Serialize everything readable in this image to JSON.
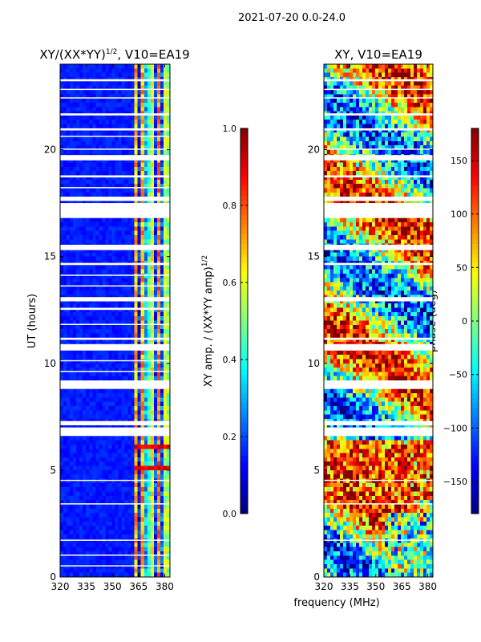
{
  "figure": {
    "suptitle": "2021-07-20 0.0-24.0",
    "xlabel": "frequency (MHz)"
  },
  "colors": {
    "jet": [
      "#00007f",
      "#0000ff",
      "#007fff",
      "#00ffff",
      "#7fff7f",
      "#ffff00",
      "#ff7f00",
      "#ff0000",
      "#7f0000"
    ],
    "blank": "#ffffff"
  },
  "chart_data": [
    {
      "type": "heatmap",
      "title": "XY/(XX*YY)",
      "title_power": "1/2",
      "title_suffix": ", V10=EA19",
      "xlabel": "",
      "ylabel": "UT (hours)",
      "xlim": [
        320,
        383
      ],
      "ylim": [
        0,
        24
      ],
      "xticks": [
        320,
        335,
        350,
        365,
        380
      ],
      "yticks": [
        0,
        5,
        10,
        15,
        20
      ],
      "colorbar": {
        "label": "XY amp. / (XX*YY amp)",
        "label_power": "1/2",
        "range": [
          0.0,
          1.0
        ],
        "ticks": [
          "0.0",
          "0.2",
          "0.4",
          "0.6",
          "0.8",
          "1.0"
        ],
        "tick_values": [
          0.0,
          0.2,
          0.4,
          0.6,
          0.8,
          1.0
        ]
      },
      "flagged_hours": [
        [
          23.2,
          23.3
        ],
        [
          22.8,
          22.85
        ],
        [
          22.4,
          22.45
        ],
        [
          21.6,
          21.7
        ],
        [
          20.9,
          21.0
        ],
        [
          20.6,
          20.65
        ],
        [
          20.0,
          20.05
        ],
        [
          19.5,
          19.75
        ],
        [
          18.7,
          18.8
        ],
        [
          18.2,
          18.25
        ],
        [
          17.6,
          17.8
        ],
        [
          16.8,
          17.5
        ],
        [
          15.3,
          15.55
        ],
        [
          14.6,
          14.7
        ],
        [
          14.1,
          14.15
        ],
        [
          13.6,
          13.65
        ],
        [
          12.9,
          13.1
        ],
        [
          12.5,
          12.6
        ],
        [
          11.8,
          11.85
        ],
        [
          11.1,
          11.2
        ],
        [
          10.6,
          10.9
        ],
        [
          10.1,
          10.15
        ],
        [
          9.6,
          9.65
        ],
        [
          8.8,
          9.2
        ],
        [
          7.1,
          7.3
        ],
        [
          6.6,
          7.0
        ],
        [
          4.5,
          4.55
        ],
        [
          3.4,
          3.45
        ],
        [
          1.7,
          1.75
        ],
        [
          1.0,
          1.05
        ],
        [
          0.5,
          0.55
        ]
      ]
    },
    {
      "type": "heatmap",
      "title": "XY, V10=EA19",
      "xlabel": "",
      "ylabel": "",
      "xlim": [
        320,
        383
      ],
      "ylim": [
        0,
        24
      ],
      "xticks": [
        320,
        335,
        350,
        365,
        380
      ],
      "yticks": [
        0,
        5,
        10,
        15,
        20
      ],
      "colorbar": {
        "label": "phase (deg)",
        "range": [
          -180,
          180
        ],
        "ticks": [
          "150",
          "100",
          "50",
          "0",
          "−50",
          "−100",
          "−150"
        ],
        "tick_values": [
          150,
          100,
          50,
          0,
          -50,
          -100,
          -150
        ]
      },
      "flagged_hours": [
        [
          23.2,
          23.3
        ],
        [
          22.8,
          22.85
        ],
        [
          22.4,
          22.45
        ],
        [
          21.6,
          21.7
        ],
        [
          20.9,
          21.0
        ],
        [
          20.0,
          20.05
        ],
        [
          19.5,
          19.75
        ],
        [
          18.7,
          18.8
        ],
        [
          17.6,
          17.8
        ],
        [
          16.8,
          17.5
        ],
        [
          15.3,
          15.55
        ],
        [
          14.6,
          14.7
        ],
        [
          12.9,
          13.1
        ],
        [
          11.1,
          11.2
        ],
        [
          10.6,
          10.9
        ],
        [
          8.8,
          9.2
        ],
        [
          7.1,
          7.3
        ],
        [
          6.6,
          7.0
        ],
        [
          4.5,
          4.55
        ],
        [
          3.4,
          3.45
        ],
        [
          1.7,
          1.75
        ]
      ]
    }
  ]
}
